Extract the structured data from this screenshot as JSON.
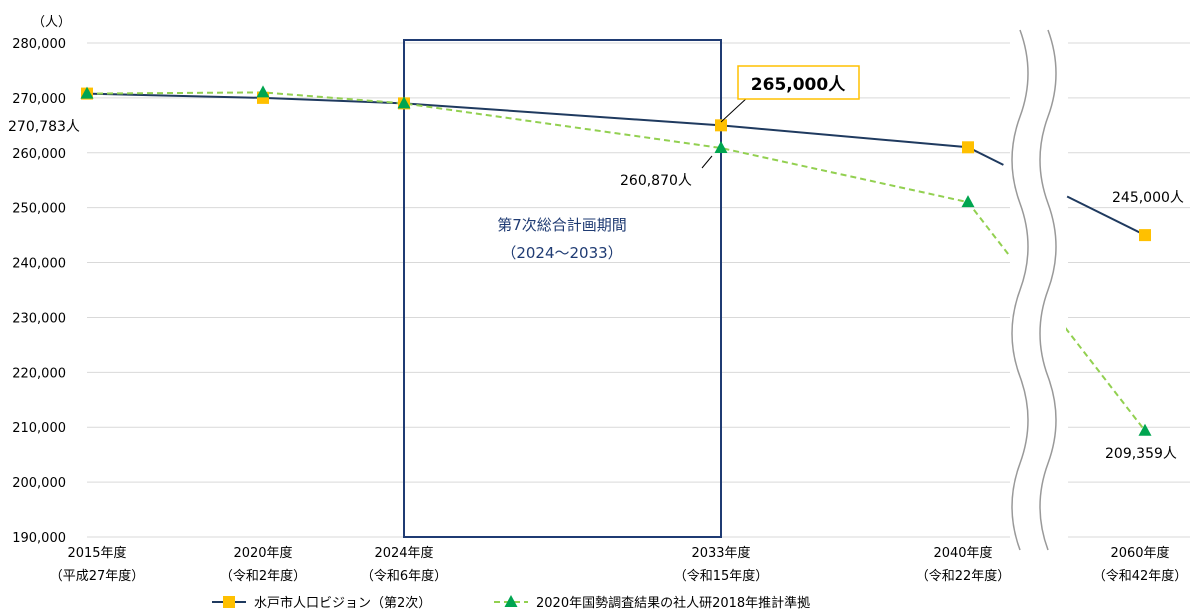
{
  "chart_data": {
    "type": "line",
    "unit_label": "（人）",
    "ylim": [
      190000,
      280000
    ],
    "yticks": [
      "280,000",
      "270,000",
      "260,000",
      "250,000",
      "240,000",
      "230,000",
      "220,000",
      "210,000",
      "200,000",
      "190,000"
    ],
    "categories": [
      {
        "line1": "2015年度",
        "line2": "（平成27年度）"
      },
      {
        "line1": "2020年度",
        "line2": "（令和2年度）"
      },
      {
        "line1": "2024年度",
        "line2": "（令和6年度）"
      },
      {
        "line1": "2033年度",
        "line2": "（令和15年度）"
      },
      {
        "line1": "2040年度",
        "line2": "（令和22年度）"
      },
      {
        "line1": "2060年度",
        "line2": "（令和42年度）"
      }
    ],
    "series": [
      {
        "name": "水戸市人口ビジョン（第2次）",
        "color": "#1f3a5f",
        "marker": "square",
        "marker_color": "#ffc000",
        "values": [
          270783,
          270000,
          269000,
          265000,
          261000,
          245000
        ]
      },
      {
        "name": "2020年国勢調査結果の社人研2018年推計準拠",
        "color": "#92d050",
        "marker": "triangle",
        "marker_color": "#00a550",
        "values": [
          270783,
          271000,
          269000,
          260870,
          251000,
          209359
        ]
      }
    ],
    "period_box": {
      "title": "第7次総合計画期間",
      "range": "（2024～2033）",
      "color": "#1f3b73"
    },
    "annotations": {
      "start": "270,783人",
      "target_2033": "265,000人",
      "proj_2033": "260,870人",
      "target_2060": "245,000人",
      "proj_2060": "209,359人"
    },
    "break_between": [
      "2040年度",
      "2060年度"
    ]
  }
}
